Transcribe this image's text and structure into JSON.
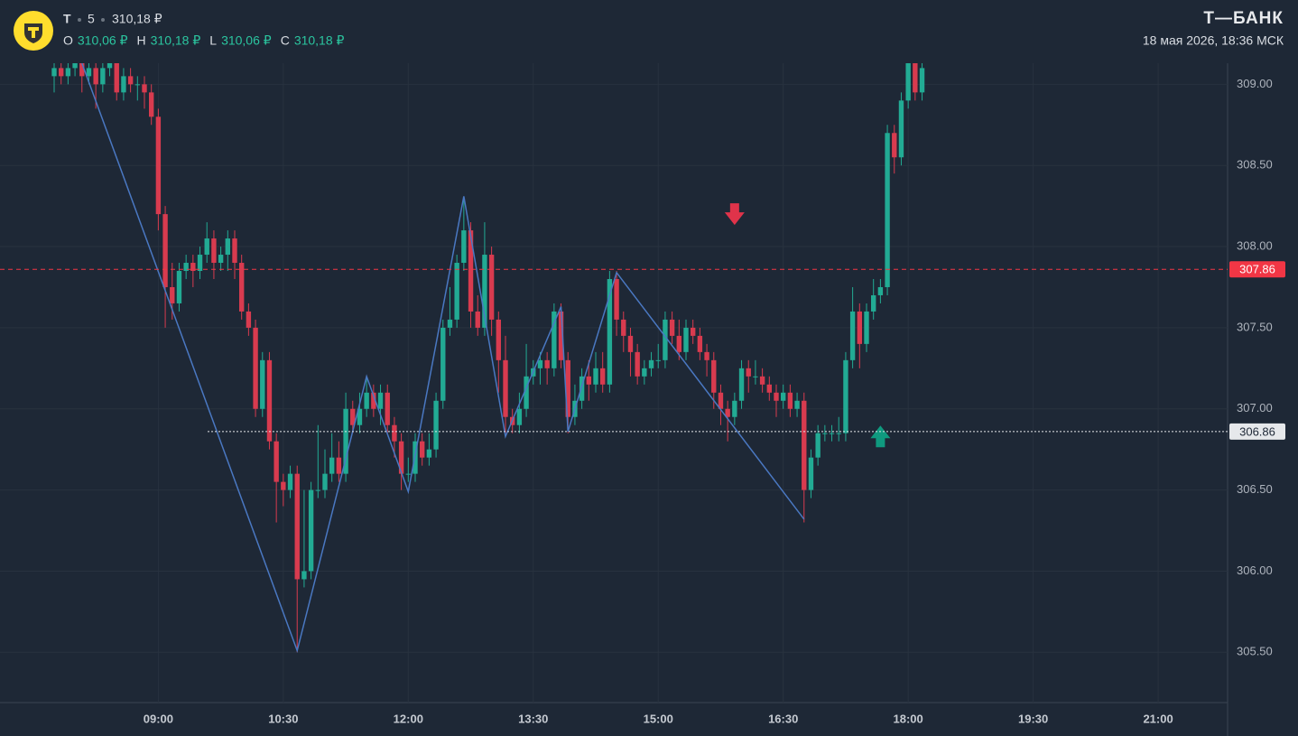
{
  "header": {
    "ticker": "Т",
    "interval": "5",
    "price": "310,18 ₽",
    "ohlc": [
      {
        "label": "O",
        "value": "310,06 ₽"
      },
      {
        "label": "H",
        "value": "310,18 ₽"
      },
      {
        "label": "L",
        "value": "310,06 ₽"
      },
      {
        "label": "C",
        "value": "310,18 ₽"
      }
    ],
    "brand": "Т—БАНК",
    "datetime": "18 мая 2026, 18:36 МСК"
  },
  "chart_data": {
    "type": "candlestick",
    "up_color": "#22ab94",
    "down_color": "#d83b4f",
    "grid": true,
    "xlim": [
      426,
      1310
    ],
    "ylim": [
      305.19,
      309.13
    ],
    "xticks": [
      {
        "value": 540,
        "label": "09:00"
      },
      {
        "value": 630,
        "label": "10:30"
      },
      {
        "value": 720,
        "label": "12:00"
      },
      {
        "value": 810,
        "label": "13:30"
      },
      {
        "value": 900,
        "label": "15:00"
      },
      {
        "value": 990,
        "label": "16:30"
      },
      {
        "value": 1080,
        "label": "18:00"
      },
      {
        "value": 1170,
        "label": "19:30"
      },
      {
        "value": 1260,
        "label": "21:00"
      }
    ],
    "yticks": [
      {
        "value": 305.5,
        "label": "305.50"
      },
      {
        "value": 306,
        "label": "306.00"
      },
      {
        "value": 306.5,
        "label": "306.50"
      },
      {
        "value": 307,
        "label": "307.00"
      },
      {
        "value": 307.5,
        "label": "307.50"
      },
      {
        "value": 308,
        "label": "308.00"
      },
      {
        "value": 308.5,
        "label": "308.50"
      },
      {
        "value": 309,
        "label": "309.00"
      }
    ],
    "x": [
      465,
      470,
      475,
      480,
      485,
      490,
      495,
      500,
      505,
      510,
      515,
      520,
      525,
      530,
      535,
      540,
      545,
      550,
      555,
      560,
      565,
      570,
      575,
      580,
      585,
      590,
      595,
      600,
      605,
      610,
      615,
      620,
      625,
      630,
      635,
      640,
      645,
      650,
      655,
      660,
      665,
      670,
      675,
      680,
      685,
      690,
      695,
      700,
      705,
      710,
      715,
      720,
      725,
      730,
      735,
      740,
      745,
      750,
      755,
      760,
      765,
      770,
      775,
      780,
      785,
      790,
      795,
      800,
      805,
      810,
      815,
      820,
      825,
      830,
      835,
      840,
      845,
      850,
      855,
      860,
      865,
      870,
      875,
      880,
      885,
      890,
      895,
      900,
      905,
      910,
      915,
      920,
      925,
      930,
      935,
      940,
      945,
      950,
      955,
      960,
      965,
      970,
      975,
      980,
      985,
      990,
      995,
      1000,
      1005,
      1010,
      1015,
      1020,
      1025,
      1030,
      1035,
      1040,
      1045,
      1050,
      1055,
      1060,
      1065,
      1070,
      1075,
      1080,
      1085,
      1090
    ],
    "open": [
      309.05,
      309.1,
      309.05,
      309.1,
      309.15,
      309.05,
      309.1,
      309.0,
      309.1,
      309.2,
      308.95,
      309.05,
      309.0,
      309.0,
      308.95,
      308.8,
      308.2,
      307.75,
      307.65,
      307.85,
      307.9,
      307.85,
      307.95,
      308.05,
      307.9,
      307.95,
      308.05,
      307.9,
      307.6,
      307.5,
      307.0,
      307.3,
      306.8,
      306.55,
      306.5,
      306.6,
      305.95,
      306.0,
      306.5,
      306.5,
      306.6,
      306.7,
      306.6,
      307.0,
      306.9,
      307.0,
      307.1,
      307.0,
      307.1,
      306.9,
      306.8,
      306.6,
      306.6,
      306.8,
      306.7,
      306.75,
      307.05,
      307.5,
      307.55,
      307.9,
      308.1,
      307.6,
      307.5,
      307.95,
      307.55,
      307.3,
      306.95,
      306.9,
      307.0,
      307.2,
      307.25,
      307.3,
      307.25,
      307.6,
      307.3,
      306.95,
      307.05,
      307.2,
      307.15,
      307.25,
      307.15,
      307.8,
      307.55,
      307.45,
      307.35,
      307.2,
      307.25,
      307.3,
      307.3,
      307.55,
      307.45,
      307.35,
      307.5,
      307.45,
      307.35,
      307.3,
      307.1,
      307.0,
      306.95,
      307.05,
      307.25,
      307.2,
      307.2,
      307.15,
      307.1,
      307.05,
      307.1,
      307.0,
      307.05,
      306.5,
      306.7,
      306.85,
      306.85,
      306.85,
      306.85,
      307.3,
      307.6,
      307.4,
      307.6,
      307.7,
      307.75,
      308.7,
      308.55,
      308.9,
      309.15,
      308.95
    ],
    "high": [
      309.15,
      309.15,
      309.15,
      309.2,
      309.2,
      309.15,
      309.15,
      309.15,
      309.25,
      309.25,
      309.1,
      309.1,
      309.05,
      309.05,
      309.0,
      308.85,
      308.25,
      307.9,
      307.9,
      307.95,
      307.95,
      308.0,
      308.15,
      308.1,
      308.0,
      308.1,
      308.1,
      307.95,
      307.65,
      307.55,
      307.35,
      307.35,
      306.85,
      306.6,
      306.65,
      306.65,
      306.5,
      306.55,
      306.9,
      306.75,
      306.85,
      306.8,
      307.1,
      307.05,
      307.1,
      307.2,
      307.15,
      307.15,
      307.15,
      306.95,
      306.85,
      306.7,
      306.85,
      306.85,
      306.85,
      307.1,
      307.55,
      307.75,
      307.95,
      308.3,
      308.15,
      307.7,
      308.15,
      308.0,
      307.6,
      307.45,
      307.0,
      307.1,
      307.4,
      307.3,
      307.35,
      307.35,
      307.65,
      307.65,
      307.35,
      307.15,
      307.25,
      307.3,
      307.35,
      307.35,
      307.85,
      307.85,
      307.6,
      307.5,
      307.4,
      307.3,
      307.35,
      307.4,
      307.6,
      307.6,
      307.55,
      307.55,
      307.55,
      307.5,
      307.4,
      307.35,
      307.15,
      307.05,
      307.1,
      307.3,
      307.3,
      307.3,
      307.25,
      307.2,
      307.15,
      307.15,
      307.15,
      307.1,
      307.1,
      306.75,
      306.9,
      306.9,
      306.9,
      306.95,
      307.35,
      307.75,
      307.65,
      307.65,
      307.8,
      307.8,
      308.75,
      308.75,
      308.95,
      309.2,
      309.2,
      309.15
    ],
    "low": [
      308.95,
      309.0,
      309.0,
      309.05,
      308.95,
      309.0,
      308.85,
      308.95,
      309.05,
      308.9,
      308.9,
      308.95,
      308.9,
      308.85,
      308.75,
      308.1,
      307.5,
      307.55,
      307.6,
      307.8,
      307.75,
      307.8,
      307.9,
      307.8,
      307.85,
      307.85,
      307.8,
      307.55,
      307.45,
      306.95,
      306.95,
      306.75,
      306.3,
      306.4,
      306.45,
      305.5,
      305.9,
      305.95,
      306.45,
      306.45,
      306.55,
      306.55,
      306.55,
      306.85,
      306.85,
      306.95,
      306.95,
      306.9,
      306.85,
      306.7,
      306.5,
      306.55,
      306.55,
      306.65,
      306.65,
      306.7,
      307.0,
      307.45,
      307.5,
      307.85,
      307.5,
      307.45,
      307.45,
      307.45,
      307.1,
      306.85,
      306.85,
      306.85,
      306.95,
      307.15,
      307.15,
      307.15,
      307.2,
      307.25,
      306.85,
      306.9,
      307.0,
      307.05,
      307.1,
      307.1,
      307.1,
      307.45,
      307.35,
      307.2,
      307.15,
      307.15,
      307.2,
      307.25,
      307.25,
      307.4,
      307.3,
      307.3,
      307.4,
      307.3,
      307.2,
      307.0,
      306.9,
      306.8,
      306.9,
      307.0,
      307.1,
      307.15,
      307.1,
      307.05,
      306.95,
      307.0,
      306.95,
      306.95,
      306.3,
      306.45,
      306.65,
      306.8,
      306.8,
      306.8,
      306.8,
      307.25,
      307.25,
      307.35,
      307.55,
      307.65,
      307.7,
      308.45,
      308.5,
      308.85,
      308.9,
      308.9
    ],
    "close": [
      309.1,
      309.05,
      309.1,
      309.15,
      309.05,
      309.1,
      309.0,
      309.1,
      309.2,
      308.95,
      309.05,
      309.0,
      309.0,
      308.95,
      308.8,
      308.2,
      307.75,
      307.65,
      307.85,
      307.9,
      307.85,
      307.95,
      308.05,
      307.9,
      307.95,
      308.05,
      307.9,
      307.6,
      307.5,
      307.0,
      307.3,
      306.8,
      306.55,
      306.5,
      306.6,
      305.95,
      306.0,
      306.5,
      306.5,
      306.6,
      306.7,
      306.6,
      307.0,
      306.9,
      307.0,
      307.1,
      307.0,
      307.1,
      306.9,
      306.8,
      306.6,
      306.6,
      306.8,
      306.7,
      306.75,
      307.05,
      307.5,
      307.55,
      307.9,
      308.1,
      307.6,
      307.5,
      307.95,
      307.55,
      307.3,
      306.95,
      306.9,
      307.0,
      307.2,
      307.25,
      307.3,
      307.25,
      307.6,
      307.3,
      306.95,
      307.05,
      307.2,
      307.15,
      307.25,
      307.15,
      307.8,
      307.55,
      307.45,
      307.35,
      307.2,
      307.25,
      307.3,
      307.3,
      307.55,
      307.45,
      307.35,
      307.5,
      307.45,
      307.35,
      307.3,
      307.1,
      307.0,
      306.95,
      307.05,
      307.25,
      307.2,
      307.2,
      307.15,
      307.1,
      307.05,
      307.1,
      307.0,
      307.05,
      306.5,
      306.7,
      306.85,
      306.85,
      306.85,
      306.85,
      307.3,
      307.6,
      307.4,
      307.6,
      307.7,
      307.75,
      308.7,
      308.55,
      308.9,
      309.15,
      308.95,
      309.1
    ],
    "zigzag": {
      "color": "#4a78c2",
      "x": [
        485,
        640,
        690,
        720,
        760,
        790,
        830,
        835,
        870,
        1005
      ],
      "y": [
        309.13,
        305.51,
        307.2,
        306.49,
        308.31,
        306.83,
        307.63,
        306.86,
        307.84,
        306.32
      ]
    },
    "hlines": [
      {
        "value": 307.86,
        "color": "#f23645",
        "text_color": "#ffffff",
        "style": "dashed"
      },
      {
        "value": 306.86,
        "color": "#e6e8eb",
        "text_color": "#1e2836",
        "style": "dotted"
      }
    ],
    "markers": [
      {
        "x": 955,
        "y": 308.2,
        "dir": "down",
        "color": "#e0334a"
      },
      {
        "x": 1060,
        "y": 306.83,
        "dir": "up",
        "color": "#0f9a7f"
      }
    ]
  }
}
